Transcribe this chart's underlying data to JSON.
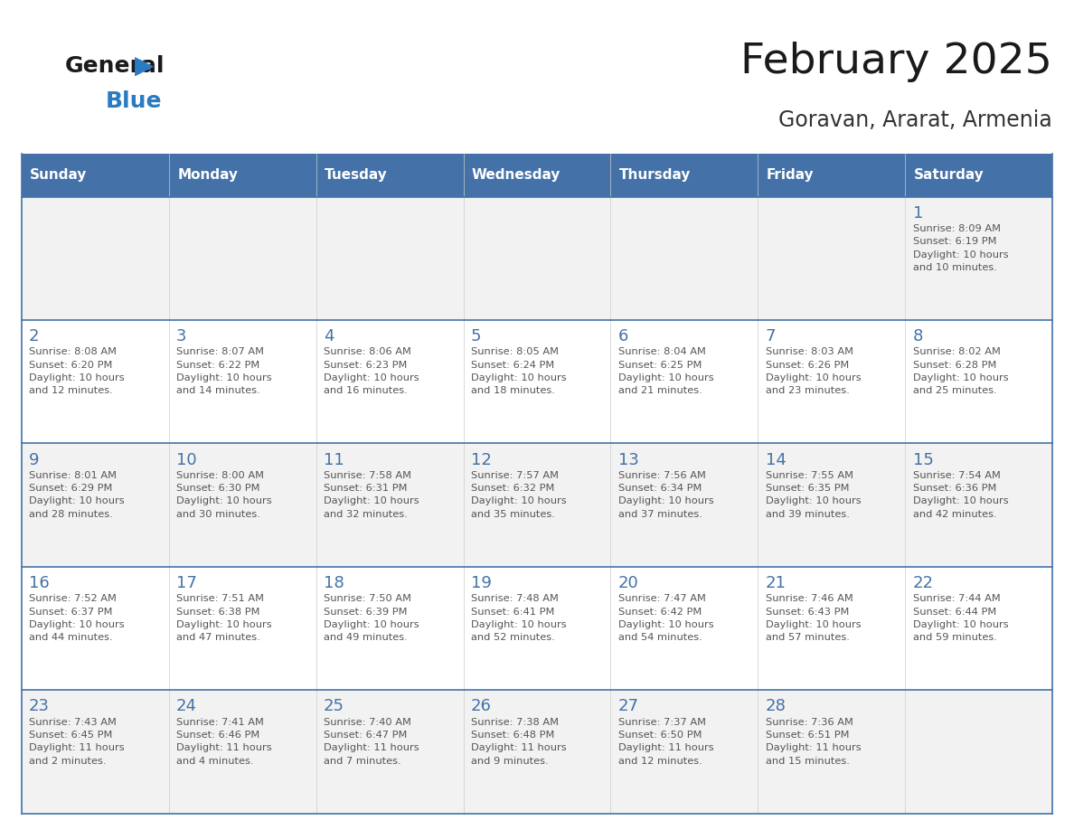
{
  "title": "February 2025",
  "subtitle": "Goravan, Ararat, Armenia",
  "header_bg": "#4472a8",
  "header_text": "#ffffff",
  "day_names": [
    "Sunday",
    "Monday",
    "Tuesday",
    "Wednesday",
    "Thursday",
    "Friday",
    "Saturday"
  ],
  "bg_color": "#ffffff",
  "cell_bg_odd": "#f2f2f2",
  "cell_bg_even": "#ffffff",
  "line_color": "#4472a8",
  "title_color": "#1a1a1a",
  "subtitle_color": "#333333",
  "day_num_color": "#4472a8",
  "text_color": "#555555",
  "logo_general_color": "#1a1a1a",
  "logo_blue_color": "#2b7bc2",
  "weeks": [
    {
      "days": [
        {
          "day": null,
          "info": null
        },
        {
          "day": null,
          "info": null
        },
        {
          "day": null,
          "info": null
        },
        {
          "day": null,
          "info": null
        },
        {
          "day": null,
          "info": null
        },
        {
          "day": null,
          "info": null
        },
        {
          "day": 1,
          "info": "Sunrise: 8:09 AM\nSunset: 6:19 PM\nDaylight: 10 hours\nand 10 minutes."
        }
      ]
    },
    {
      "days": [
        {
          "day": 2,
          "info": "Sunrise: 8:08 AM\nSunset: 6:20 PM\nDaylight: 10 hours\nand 12 minutes."
        },
        {
          "day": 3,
          "info": "Sunrise: 8:07 AM\nSunset: 6:22 PM\nDaylight: 10 hours\nand 14 minutes."
        },
        {
          "day": 4,
          "info": "Sunrise: 8:06 AM\nSunset: 6:23 PM\nDaylight: 10 hours\nand 16 minutes."
        },
        {
          "day": 5,
          "info": "Sunrise: 8:05 AM\nSunset: 6:24 PM\nDaylight: 10 hours\nand 18 minutes."
        },
        {
          "day": 6,
          "info": "Sunrise: 8:04 AM\nSunset: 6:25 PM\nDaylight: 10 hours\nand 21 minutes."
        },
        {
          "day": 7,
          "info": "Sunrise: 8:03 AM\nSunset: 6:26 PM\nDaylight: 10 hours\nand 23 minutes."
        },
        {
          "day": 8,
          "info": "Sunrise: 8:02 AM\nSunset: 6:28 PM\nDaylight: 10 hours\nand 25 minutes."
        }
      ]
    },
    {
      "days": [
        {
          "day": 9,
          "info": "Sunrise: 8:01 AM\nSunset: 6:29 PM\nDaylight: 10 hours\nand 28 minutes."
        },
        {
          "day": 10,
          "info": "Sunrise: 8:00 AM\nSunset: 6:30 PM\nDaylight: 10 hours\nand 30 minutes."
        },
        {
          "day": 11,
          "info": "Sunrise: 7:58 AM\nSunset: 6:31 PM\nDaylight: 10 hours\nand 32 minutes."
        },
        {
          "day": 12,
          "info": "Sunrise: 7:57 AM\nSunset: 6:32 PM\nDaylight: 10 hours\nand 35 minutes."
        },
        {
          "day": 13,
          "info": "Sunrise: 7:56 AM\nSunset: 6:34 PM\nDaylight: 10 hours\nand 37 minutes."
        },
        {
          "day": 14,
          "info": "Sunrise: 7:55 AM\nSunset: 6:35 PM\nDaylight: 10 hours\nand 39 minutes."
        },
        {
          "day": 15,
          "info": "Sunrise: 7:54 AM\nSunset: 6:36 PM\nDaylight: 10 hours\nand 42 minutes."
        }
      ]
    },
    {
      "days": [
        {
          "day": 16,
          "info": "Sunrise: 7:52 AM\nSunset: 6:37 PM\nDaylight: 10 hours\nand 44 minutes."
        },
        {
          "day": 17,
          "info": "Sunrise: 7:51 AM\nSunset: 6:38 PM\nDaylight: 10 hours\nand 47 minutes."
        },
        {
          "day": 18,
          "info": "Sunrise: 7:50 AM\nSunset: 6:39 PM\nDaylight: 10 hours\nand 49 minutes."
        },
        {
          "day": 19,
          "info": "Sunrise: 7:48 AM\nSunset: 6:41 PM\nDaylight: 10 hours\nand 52 minutes."
        },
        {
          "day": 20,
          "info": "Sunrise: 7:47 AM\nSunset: 6:42 PM\nDaylight: 10 hours\nand 54 minutes."
        },
        {
          "day": 21,
          "info": "Sunrise: 7:46 AM\nSunset: 6:43 PM\nDaylight: 10 hours\nand 57 minutes."
        },
        {
          "day": 22,
          "info": "Sunrise: 7:44 AM\nSunset: 6:44 PM\nDaylight: 10 hours\nand 59 minutes."
        }
      ]
    },
    {
      "days": [
        {
          "day": 23,
          "info": "Sunrise: 7:43 AM\nSunset: 6:45 PM\nDaylight: 11 hours\nand 2 minutes."
        },
        {
          "day": 24,
          "info": "Sunrise: 7:41 AM\nSunset: 6:46 PM\nDaylight: 11 hours\nand 4 minutes."
        },
        {
          "day": 25,
          "info": "Sunrise: 7:40 AM\nSunset: 6:47 PM\nDaylight: 11 hours\nand 7 minutes."
        },
        {
          "day": 26,
          "info": "Sunrise: 7:38 AM\nSunset: 6:48 PM\nDaylight: 11 hours\nand 9 minutes."
        },
        {
          "day": 27,
          "info": "Sunrise: 7:37 AM\nSunset: 6:50 PM\nDaylight: 11 hours\nand 12 minutes."
        },
        {
          "day": 28,
          "info": "Sunrise: 7:36 AM\nSunset: 6:51 PM\nDaylight: 11 hours\nand 15 minutes."
        },
        {
          "day": null,
          "info": null
        }
      ]
    }
  ]
}
